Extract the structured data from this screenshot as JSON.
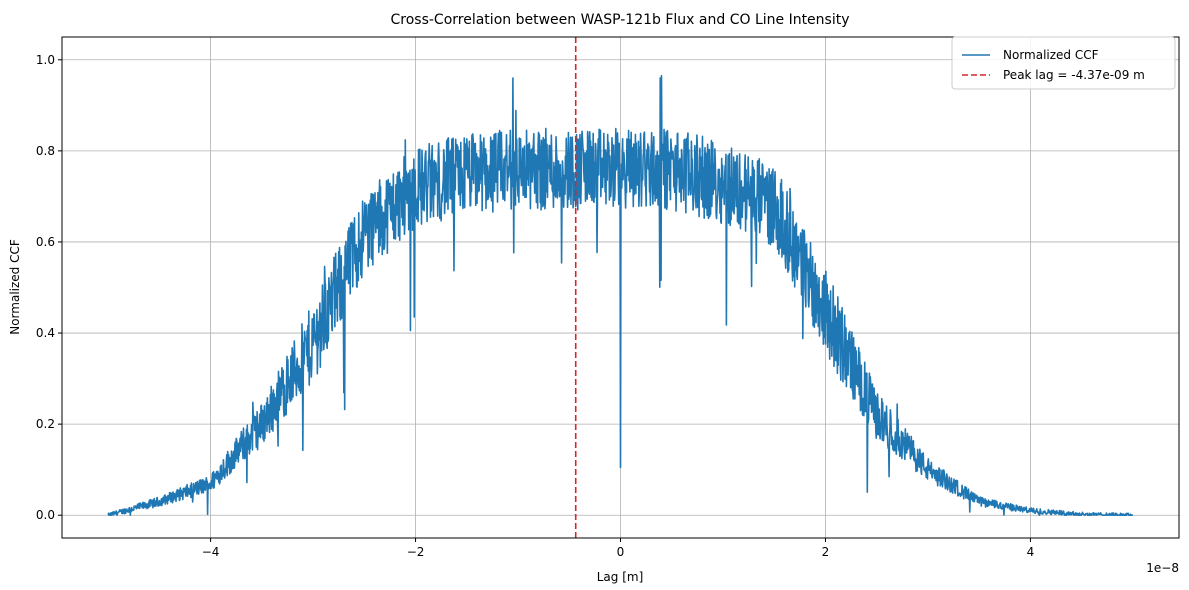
{
  "chart_data": {
    "type": "line",
    "title": "Cross-Correlation between WASP-121b Flux and CO Line Intensity",
    "xlabel": "Lag [m]",
    "ylabel": "Normalized CCF",
    "x_offset_label": "1e−8",
    "xlim": [
      -5.45e-08,
      5.45e-08
    ],
    "ylim": [
      -0.05,
      1.05
    ],
    "x_ticks": [
      -4e-08,
      -2e-08,
      0,
      2e-08,
      4e-08
    ],
    "x_tick_labels": [
      "−4",
      "−2",
      "0",
      "2",
      "4"
    ],
    "y_ticks": [
      0.0,
      0.2,
      0.4,
      0.6,
      0.8,
      1.0
    ],
    "y_tick_labels": [
      "0.0",
      "0.2",
      "0.4",
      "0.6",
      "0.8",
      "1.0"
    ],
    "grid": true,
    "legend_position": "top-right",
    "colors": {
      "series": "#1f77b4",
      "peak": "#d62728",
      "grid": "#b0b0b0"
    },
    "series": [
      {
        "name": "Normalized CCF",
        "color": "#1f77b4",
        "style": "solid",
        "envelope_x": [
          -5e-08,
          -4.5e-08,
          -4e-08,
          -3.7e-08,
          -3.5e-08,
          -3e-08,
          -2.5e-08,
          -2e-08,
          -1.5e-08,
          -1e-08,
          -5e-09,
          0,
          5e-09,
          1e-08,
          1.5e-08,
          2e-08,
          2.5e-08,
          3e-08,
          3.5e-08,
          4e-08,
          4.5e-08,
          5e-08
        ],
        "envelope_y": [
          0.0,
          0.03,
          0.07,
          0.15,
          0.2,
          0.38,
          0.62,
          0.72,
          0.75,
          0.76,
          0.76,
          0.76,
          0.76,
          0.73,
          0.68,
          0.45,
          0.22,
          0.1,
          0.03,
          0.01,
          0.002,
          0.0
        ],
        "peak_value": 0.96,
        "dip_x": 0,
        "dip_y": 0.105
      }
    ],
    "vlines": [
      {
        "name": "Peak lag = -4.37e-09 m",
        "x": -4.37e-09,
        "color": "#d62728",
        "style": "dashed"
      }
    ]
  }
}
